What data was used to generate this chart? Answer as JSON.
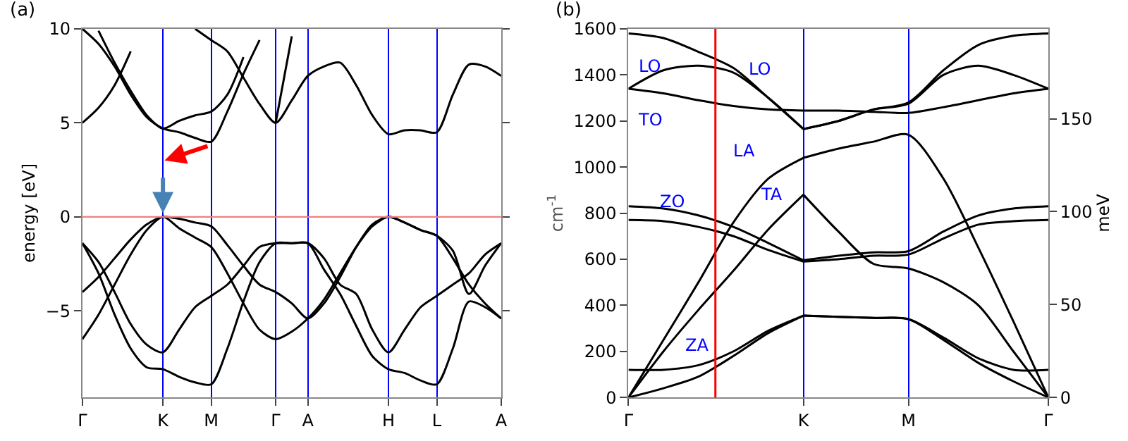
{
  "chart_data": [
    {
      "type": "line",
      "title": "(a)",
      "ylabel": "energy [eV]",
      "ylim": [
        -9.6,
        10
      ],
      "categories": [
        "Γ",
        null,
        null,
        null,
        null,
        "K",
        null,
        null,
        "M",
        null,
        null,
        null,
        "Γ",
        null,
        "A",
        null,
        null,
        null,
        null,
        "H",
        null,
        null,
        "L",
        null,
        null,
        null,
        "A"
      ],
      "yticks": [
        10,
        5,
        0,
        {
          "value": -5,
          "label": "−5"
        }
      ],
      "grid": "x",
      "marker": "none",
      "line_style": "solid",
      "series": [
        {
          "color": "#000000",
          "values": [
            -4.0,
            -3.2,
            -2.2,
            -1.2,
            -0.4,
            0,
            -0.1,
            -0.3,
            -0.5,
            -1.5,
            -2.6,
            -3.6,
            -4.0,
            -4.6,
            -5.4,
            -4.6,
            -3.2,
            -1.6,
            -0.4,
            0,
            -0.3,
            -0.7,
            -1.0,
            -2.2,
            -3.6,
            -4.6,
            -5.4
          ]
        },
        {
          "color": "#000000",
          "values": [
            -6.5,
            -5.2,
            -3.6,
            -2.0,
            -0.7,
            0,
            -0.6,
            -1.1,
            -1.6,
            -3.0,
            -4.6,
            -6.0,
            -6.5,
            -6.1,
            -5.4,
            -4.4,
            -3.0,
            -1.6,
            -0.5,
            0,
            -0.3,
            -0.7,
            -1.0,
            -1.8,
            -4.1,
            -2.6,
            -1.4
          ]
        },
        {
          "color": "#000000",
          "values": [
            -1.4,
            -2.4,
            -4.0,
            -5.7,
            -6.8,
            -7.2,
            -6.0,
            -4.8,
            -4.2,
            -3.6,
            -2.6,
            -1.6,
            -1.4,
            -1.4,
            -1.4,
            -2.2,
            -3.6,
            -4.1,
            -6.0,
            -7.2,
            -6.0,
            -4.8,
            -4.2,
            -3.6,
            -3.0,
            -2.0,
            -1.4
          ]
        },
        {
          "color": "#000000",
          "values": [
            -1.4,
            -3.0,
            -5.2,
            -7.0,
            -8.0,
            -8.1,
            -8.5,
            -8.8,
            -8.9,
            -7.0,
            -4.5,
            -2.4,
            -1.4,
            -1.4,
            -1.4,
            -2.8,
            -4.1,
            -5.8,
            -7.4,
            -8.1,
            -8.3,
            -8.7,
            -8.9,
            -7.0,
            -4.5,
            -4.8,
            -5.4
          ]
        },
        {
          "color": "#000000",
          "values": [
            5.0,
            5.8,
            7.0,
            8.8,
            null,
            null,
            null,
            null,
            null,
            null,
            null,
            null,
            null,
            null,
            null,
            null,
            null,
            null,
            null,
            null,
            null,
            null,
            null,
            null,
            null,
            null,
            null
          ]
        },
        {
          "color": "#000000",
          "values": [
            10,
            9.2,
            8.0,
            6.5,
            5.3,
            4.7,
            4.5,
            4.2,
            4.0,
            5.6,
            7.6,
            9.4,
            null,
            null,
            null,
            null,
            null,
            null,
            null,
            null,
            null,
            null,
            null,
            null,
            null,
            null,
            null
          ]
        },
        {
          "color": "#000000",
          "values": [
            null,
            9.9,
            8.2,
            6.7,
            5.4,
            4.7,
            5.1,
            5.4,
            5.6,
            6.5,
            8.5,
            null,
            null,
            null,
            null,
            null,
            null,
            null,
            null,
            null,
            null,
            null,
            null,
            null,
            null,
            null,
            null
          ]
        },
        {
          "color": "#000000",
          "values": [
            null,
            null,
            null,
            null,
            null,
            null,
            null,
            10,
            9.4,
            8.8,
            7.4,
            6.0,
            5.0,
            6.2,
            7.5,
            8.0,
            8.2,
            7.0,
            5.4,
            4.4,
            4.6,
            4.6,
            4.5,
            6.5,
            8.1,
            8.0,
            7.5
          ]
        },
        {
          "color": "#000000",
          "values": [
            null,
            null,
            null,
            null,
            null,
            null,
            null,
            null,
            null,
            null,
            null,
            null,
            5.0,
            9.6,
            null,
            null,
            null,
            null,
            null,
            null,
            null,
            null,
            null,
            null,
            null,
            null,
            null
          ]
        }
      ],
      "ref_lines": [
        {
          "axis": "y",
          "value": 0,
          "color": "#f08080"
        }
      ]
    },
    {
      "type": "line",
      "title": "(b)",
      "ylabel": "cm$^{-1}$",
      "y2label": "meV",
      "ylim": [
        0,
        1600
      ],
      "y2lim": [
        0,
        198.4
      ],
      "categories": [
        "Γ",
        null,
        null,
        null,
        null,
        "K",
        null,
        null,
        "M",
        null,
        null,
        null,
        "Γ"
      ],
      "yticks": [
        0,
        200,
        400,
        600,
        800,
        1000,
        1200,
        1400,
        1600
      ],
      "y2ticks": [
        0,
        50,
        100,
        150
      ],
      "grid": "x",
      "marker": "none",
      "line_style": "solid",
      "series": [
        {
          "color": "#000000",
          "values": [
            1580,
            1560,
            1500,
            1430,
            1300,
            1165,
            null,
            null,
            null,
            null,
            null,
            null,
            null
          ]
        },
        {
          "color": "#000000",
          "values": [
            null,
            null,
            null,
            null,
            null,
            1165,
            1200,
            1250,
            1280,
            1420,
            1530,
            1570,
            1580
          ]
        },
        {
          "color": "#000000",
          "values": [
            1340,
            1420,
            1440,
            1410,
            1300,
            1165,
            null,
            null,
            null,
            null,
            null,
            null,
            null
          ]
        },
        {
          "color": "#000000",
          "values": [
            null,
            null,
            null,
            null,
            null,
            1165,
            1200,
            1250,
            1275,
            1400,
            1440,
            1400,
            1340
          ]
        },
        {
          "color": "#000000",
          "values": [
            1340,
            1320,
            1290,
            1265,
            1250,
            1245,
            null,
            null,
            null,
            null,
            null,
            null,
            null
          ]
        },
        {
          "color": "#000000",
          "values": [
            null,
            null,
            null,
            null,
            null,
            1245,
            1245,
            1240,
            1235,
            1260,
            1290,
            1320,
            1340
          ]
        },
        {
          "color": "#000000",
          "values": [
            0,
            250,
            500,
            760,
            950,
            1040,
            null,
            null,
            null,
            null,
            null,
            null,
            null
          ]
        },
        {
          "color": "#000000",
          "values": [
            null,
            null,
            null,
            null,
            null,
            1040,
            1080,
            1110,
            1140,
            950,
            650,
            330,
            0
          ]
        },
        {
          "color": "#000000",
          "values": [
            0,
            200,
            380,
            550,
            730,
            880,
            null,
            null,
            null,
            null,
            null,
            null,
            null
          ]
        },
        {
          "color": "#000000",
          "values": [
            null,
            null,
            null,
            null,
            null,
            880,
            720,
            580,
            560,
            500,
            400,
            200,
            0
          ]
        },
        {
          "color": "#000000",
          "values": [
            830,
            820,
            790,
            740,
            670,
            595,
            null,
            null,
            null,
            null,
            null,
            null,
            null
          ]
        },
        {
          "color": "#000000",
          "values": [
            null,
            null,
            null,
            null,
            null,
            595,
            615,
            630,
            635,
            720,
            790,
            820,
            830
          ]
        },
        {
          "color": "#000000",
          "values": [
            770,
            765,
            740,
            700,
            640,
            590,
            null,
            null,
            null,
            null,
            null,
            null,
            null
          ]
        },
        {
          "color": "#000000",
          "values": [
            null,
            null,
            null,
            null,
            null,
            590,
            600,
            615,
            620,
            690,
            750,
            765,
            770
          ]
        },
        {
          "color": "#000000",
          "values": [
            0,
            40,
            90,
            180,
            280,
            355,
            null,
            null,
            null,
            null,
            null,
            null,
            null
          ]
        },
        {
          "color": "#000000",
          "values": [
            null,
            null,
            null,
            null,
            null,
            355,
            350,
            345,
            340,
            250,
            150,
            70,
            0
          ]
        },
        {
          "color": "#000000",
          "values": [
            120,
            120,
            140,
            200,
            290,
            355,
            null,
            null,
            null,
            null,
            null,
            null,
            null
          ]
        },
        {
          "color": "#000000",
          "values": [
            null,
            null,
            null,
            null,
            null,
            355,
            350,
            345,
            340,
            260,
            170,
            120,
            120
          ]
        }
      ],
      "annotations": [
        "LO",
        "LO",
        "TO",
        "LA",
        "TA",
        "ZO",
        "ZA"
      ]
    }
  ]
}
